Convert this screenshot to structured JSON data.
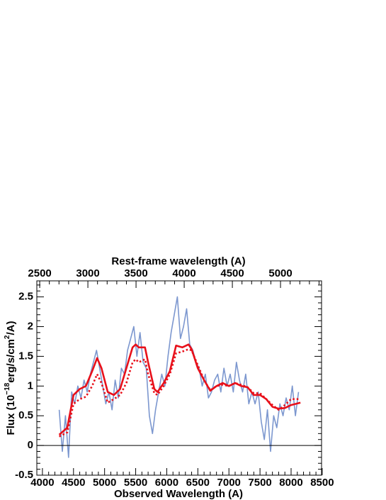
{
  "chart_data": {
    "type": "line",
    "title": "Rest-frame wavelength (A)",
    "xlabel": "Observed Wavelength (A)",
    "ylabel_parts": [
      "Flux (10",
      "−18",
      "erg/s/cm",
      "2",
      "/A)"
    ],
    "xlim": [
      3910,
      8490
    ],
    "xticks": [
      4000,
      4500,
      5000,
      5500,
      6000,
      6500,
      7000,
      7500,
      8000,
      8500
    ],
    "x2lim": [
      2470,
      5426
    ],
    "x2ticks": [
      2500,
      3000,
      3500,
      4000,
      4500,
      5000
    ],
    "ylim": [
      -0.5,
      2.77
    ],
    "yticks": [
      -0.5,
      0,
      0.5,
      1,
      1.5,
      2,
      2.5
    ],
    "reference_line": 0,
    "series": [
      {
        "color": "#7c97cf",
        "style": "solid",
        "x": [
          4270,
          4320,
          4370,
          4420,
          4470,
          4520,
          4570,
          4620,
          4670,
          4720,
          4770,
          4820,
          4870,
          4920,
          4970,
          5020,
          5070,
          5120,
          5170,
          5220,
          5270,
          5320,
          5370,
          5420,
          5470,
          5520,
          5570,
          5620,
          5670,
          5720,
          5770,
          5820,
          5870,
          5920,
          5970,
          6020,
          6070,
          6120,
          6170,
          6220,
          6270,
          6320,
          6370,
          6420,
          6470,
          6520,
          6570,
          6620,
          6670,
          6720,
          6770,
          6820,
          6870,
          6920,
          6970,
          7020,
          7070,
          7120,
          7170,
          7220,
          7270,
          7320,
          7370,
          7420,
          7470,
          7520,
          7570,
          7620,
          7670,
          7720,
          7770,
          7820,
          7870,
          7920,
          7970,
          8020,
          8070,
          8120
        ],
        "values": [
          0.6,
          -0.1,
          0.5,
          -0.2,
          0.9,
          0.7,
          1.0,
          0.8,
          1.1,
          0.9,
          1.2,
          1.4,
          1.6,
          1.3,
          1.0,
          0.7,
          0.9,
          0.6,
          1.1,
          0.8,
          1.3,
          1.2,
          1.6,
          1.8,
          2.0,
          1.5,
          1.9,
          1.4,
          1.3,
          0.5,
          0.2,
          0.6,
          0.9,
          1.2,
          1.0,
          1.5,
          1.9,
          2.2,
          2.5,
          1.8,
          2.0,
          2.3,
          1.7,
          1.6,
          1.4,
          1.3,
          1.0,
          1.2,
          0.8,
          0.9,
          1.1,
          1.2,
          0.9,
          1.3,
          1.0,
          1.2,
          0.9,
          1.4,
          1.1,
          0.9,
          1.2,
          0.7,
          0.9,
          0.7,
          0.9,
          0.4,
          0.1,
          0.6,
          -0.1,
          0.5,
          0.3,
          0.7,
          0.5,
          0.8,
          0.6,
          1.0,
          0.5,
          0.9
        ]
      },
      {
        "color": "#e8101a",
        "style": "dotted",
        "x": [
          4270,
          4400,
          4500,
          4600,
          4700,
          4800,
          4880,
          4950,
          5050,
          5150,
          5250,
          5350,
          5450,
          5500,
          5550,
          5650,
          5700,
          5800,
          5850,
          5950,
          6050,
          6150,
          6250,
          6350,
          6400,
          6500,
          6600,
          6700,
          6800,
          6900,
          7000,
          7100,
          7200,
          7300,
          7400,
          7500,
          7600,
          7700,
          7800,
          7900,
          8000,
          8150
        ],
        "values": [
          0.15,
          0.22,
          0.7,
          0.78,
          0.82,
          1.0,
          1.2,
          1.05,
          0.72,
          0.78,
          0.85,
          1.05,
          1.4,
          1.45,
          1.4,
          1.45,
          1.2,
          0.88,
          0.85,
          1.0,
          1.2,
          1.55,
          1.58,
          1.62,
          1.6,
          1.35,
          1.1,
          0.93,
          1.0,
          1.02,
          1.0,
          1.05,
          1.02,
          0.98,
          0.88,
          0.88,
          0.78,
          0.68,
          0.6,
          0.68,
          0.78,
          0.78
        ]
      },
      {
        "color": "#e8101a",
        "style": "solid",
        "x": [
          4270,
          4400,
          4500,
          4600,
          4700,
          4800,
          4880,
          4950,
          5050,
          5150,
          5250,
          5350,
          5450,
          5500,
          5550,
          5650,
          5700,
          5800,
          5850,
          5950,
          6050,
          6150,
          6250,
          6350,
          6400,
          6500,
          6600,
          6700,
          6800,
          6900,
          7000,
          7100,
          7200,
          7300,
          7400,
          7500,
          7600,
          7700,
          7800,
          7900,
          8000,
          8150
        ],
        "values": [
          0.18,
          0.3,
          0.85,
          0.95,
          1.0,
          1.25,
          1.47,
          1.3,
          0.9,
          0.85,
          0.95,
          1.3,
          1.65,
          1.7,
          1.65,
          1.65,
          1.4,
          0.95,
          0.9,
          1.05,
          1.25,
          1.68,
          1.65,
          1.7,
          1.62,
          1.3,
          1.1,
          0.92,
          1.0,
          1.05,
          1.0,
          1.05,
          1.0,
          0.98,
          0.85,
          0.85,
          0.78,
          0.65,
          0.62,
          0.63,
          0.68,
          0.72
        ]
      }
    ]
  }
}
